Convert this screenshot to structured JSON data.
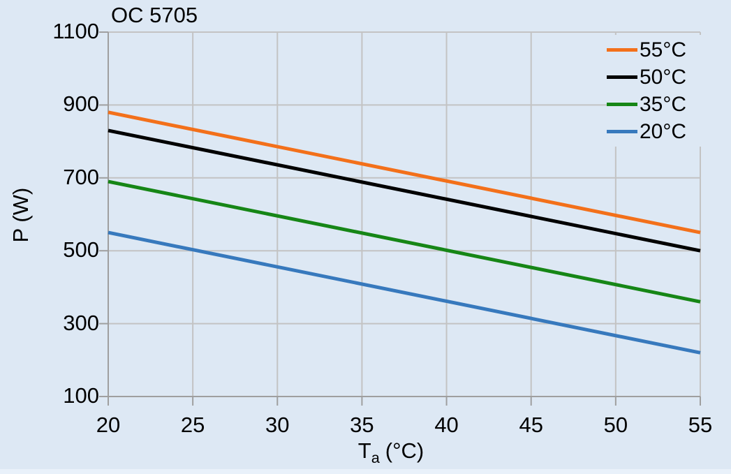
{
  "page": {
    "background_color": "#dde8f4",
    "bottom_strip_color": "#e9f1fa"
  },
  "chart_data": {
    "type": "line",
    "title": "OC 5705",
    "ylabel": "P (W)",
    "xlabel": {
      "base": "T",
      "sub": "a",
      "unit": "(°C)"
    },
    "xlim": [
      20,
      55
    ],
    "ylim": [
      100,
      1100
    ],
    "xticks": [
      20,
      25,
      30,
      35,
      40,
      45,
      50,
      55
    ],
    "yticks": [
      100,
      300,
      500,
      700,
      900,
      1100
    ],
    "grid": true,
    "legend_position": "top-right",
    "grid_color": "#c3c3c3",
    "axis_color": "#9f9f9f",
    "text_color": "#000000",
    "series": [
      {
        "name": "55°C",
        "color": "#f3701a",
        "points": [
          [
            20,
            880
          ],
          [
            55,
            550
          ]
        ]
      },
      {
        "name": "50°C",
        "color": "#000000",
        "points": [
          [
            20,
            830
          ],
          [
            55,
            500
          ]
        ]
      },
      {
        "name": "35°C",
        "color": "#168616",
        "points": [
          [
            20,
            690
          ],
          [
            55,
            360
          ]
        ]
      },
      {
        "name": "20°C",
        "color": "#3779bd",
        "points": [
          [
            20,
            550
          ],
          [
            55,
            220
          ]
        ]
      }
    ]
  }
}
